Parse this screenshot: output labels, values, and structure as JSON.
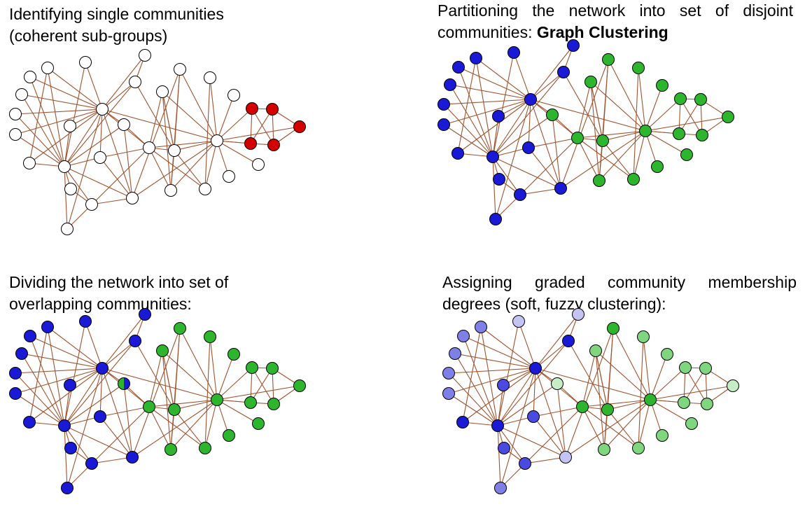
{
  "panels": [
    {
      "id": "single",
      "caption_lines": [
        "Identifying single communities",
        "(coherent sub-groups)"
      ]
    },
    {
      "id": "partition",
      "caption_lines": [
        "Partitioning the network into set of disjoint",
        "communities: "
      ],
      "caption_bold": "Graph Clustering"
    },
    {
      "id": "overlap",
      "caption_lines": [
        "Dividing the network into set of",
        "overlapping communities:"
      ]
    },
    {
      "id": "fuzzy",
      "caption_lines": [
        "Assigning graded community membership",
        "degrees (soft, fuzzy clustering):"
      ]
    }
  ],
  "colors": {
    "edge": "#a0522d",
    "stroke": "#000000",
    "white": "#ffffff",
    "red": "#d40000",
    "blue": "#1a1ad6",
    "green": "#2db52d",
    "blue_mid": "#4a4ae0",
    "blue_light": "#7f7fe8",
    "blue_pale": "#c4c4f2",
    "green_light": "#7fd67f",
    "green_pale": "#c6edc6"
  }
}
